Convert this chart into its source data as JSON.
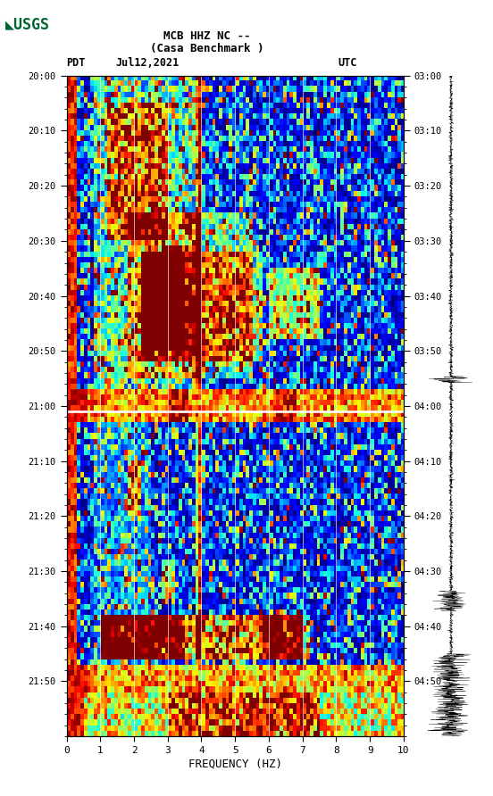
{
  "title_line1": "MCB HHZ NC --",
  "title_line2": "(Casa Benchmark )",
  "left_label": "PDT",
  "date_label": "Jul12,2021",
  "right_label": "UTC",
  "left_times": [
    "20:00",
    "20:10",
    "20:20",
    "20:30",
    "20:40",
    "20:50",
    "21:00",
    "21:10",
    "21:20",
    "21:30",
    "21:40",
    "21:50"
  ],
  "right_times": [
    "03:00",
    "03:10",
    "03:20",
    "03:30",
    "03:40",
    "03:50",
    "04:00",
    "04:10",
    "04:20",
    "04:30",
    "04:40",
    "04:50"
  ],
  "freq_min": 0,
  "freq_max": 10,
  "freq_ticks": [
    0,
    1,
    2,
    3,
    4,
    5,
    6,
    7,
    8,
    9,
    10
  ],
  "xlabel": "FREQUENCY (HZ)",
  "background_color": "#ffffff",
  "spectrogram_cmap": "jet",
  "fig_width": 5.52,
  "fig_height": 8.92,
  "n_time_steps": 120,
  "n_freq_steps": 100,
  "vertical_lines_freq": [
    1.0,
    2.0,
    3.0,
    4.0,
    5.0,
    6.0,
    7.0,
    8.0,
    9.0
  ],
  "usgs_logo_color": "#006633"
}
